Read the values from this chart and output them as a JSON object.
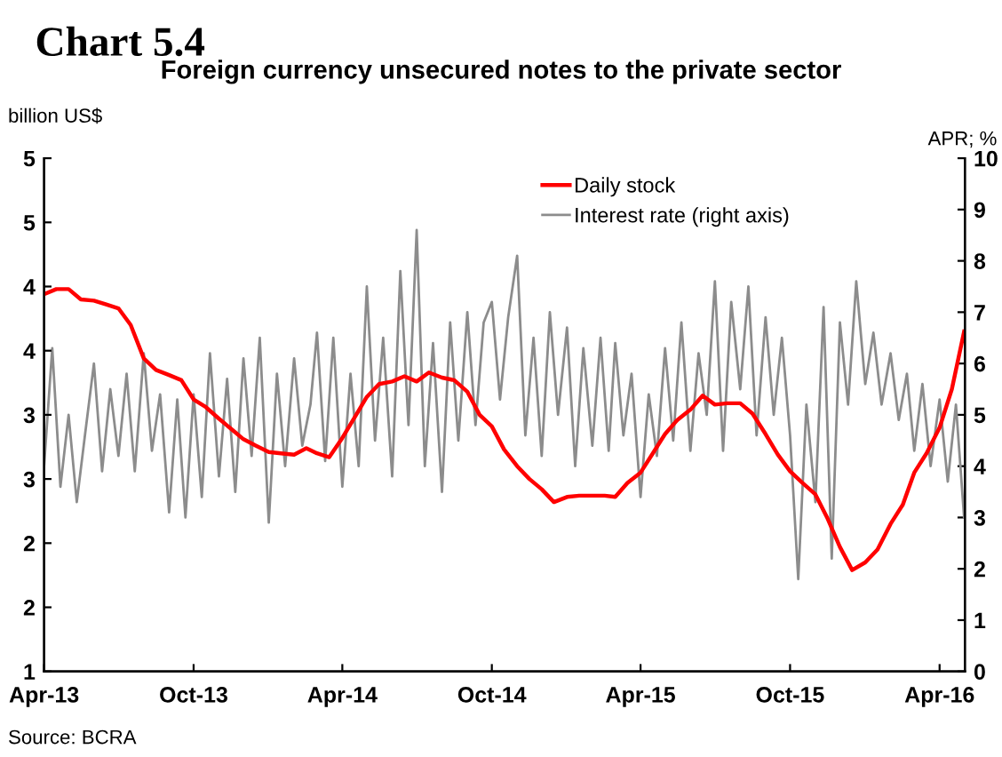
{
  "chart_data": {
    "type": "line",
    "title": "Chart 5.4",
    "subtitle": "Foreign currency unsecured notes to the private sector",
    "ylabel": "billion US$",
    "y2label": "APR; %",
    "annotations": [
      "Source: BCRA"
    ],
    "xlim": [
      "2013-04-01",
      "2016-05-02"
    ],
    "xticks": [
      {
        "value": "2013-04-01",
        "label": "Apr-13"
      },
      {
        "value": "2013-10-01",
        "label": "Oct-13"
      },
      {
        "value": "2014-04-01",
        "label": "Apr-14"
      },
      {
        "value": "2014-10-01",
        "label": "Oct-14"
      },
      {
        "value": "2015-04-01",
        "label": "Apr-15"
      },
      {
        "value": "2015-10-01",
        "label": "Oct-15"
      },
      {
        "value": "2016-04-01",
        "label": "Apr-16"
      }
    ],
    "ylim": [
      1,
      5
    ],
    "yticks": [
      1,
      {
        "value": 1.5,
        "label": "2"
      },
      2,
      {
        "value": 2.5,
        "label": "3"
      },
      3,
      {
        "value": 3.5,
        "label": "4"
      },
      4,
      {
        "value": 4.5,
        "label": "5"
      },
      5
    ],
    "y2lim": [
      0,
      10
    ],
    "y2ticks": [
      0,
      1,
      2,
      3,
      4,
      5,
      6,
      7,
      8,
      9,
      10
    ],
    "grid": false,
    "legend": "top right",
    "marker": "none",
    "line_style": "solid",
    "series": [
      {
        "name": "Daily stock",
        "color": "#ff0000",
        "x": [
          "2013-04-01",
          "2013-04-16",
          "2013-05-01",
          "2013-05-16",
          "2013-06-01",
          "2013-06-16",
          "2013-07-01",
          "2013-07-16",
          "2013-08-01",
          "2013-08-16",
          "2013-09-01",
          "2013-09-16",
          "2013-10-01",
          "2013-10-16",
          "2013-11-01",
          "2013-11-16",
          "2013-12-01",
          "2013-12-16",
          "2014-01-01",
          "2014-01-16",
          "2014-02-01",
          "2014-02-16",
          "2014-03-01",
          "2014-03-16",
          "2014-04-01",
          "2014-04-16",
          "2014-05-01",
          "2014-05-16",
          "2014-06-01",
          "2014-06-16",
          "2014-07-01",
          "2014-07-16",
          "2014-08-01",
          "2014-08-16",
          "2014-09-01",
          "2014-09-16",
          "2014-10-01",
          "2014-10-16",
          "2014-11-01",
          "2014-11-16",
          "2014-12-01",
          "2014-12-16",
          "2015-01-01",
          "2015-01-16",
          "2015-02-01",
          "2015-02-16",
          "2015-03-01",
          "2015-03-16",
          "2015-04-01",
          "2015-04-16",
          "2015-05-01",
          "2015-05-16",
          "2015-06-01",
          "2015-06-16",
          "2015-07-01",
          "2015-07-16",
          "2015-08-01",
          "2015-08-16",
          "2015-09-01",
          "2015-09-16",
          "2015-10-01",
          "2015-10-16",
          "2015-11-01",
          "2015-11-16",
          "2015-12-01",
          "2015-12-16",
          "2016-01-01",
          "2016-01-16",
          "2016-02-01",
          "2016-02-16",
          "2016-03-01",
          "2016-03-16",
          "2016-04-01",
          "2016-04-16",
          "2016-05-01"
        ],
        "values": [
          3.94,
          3.98,
          3.98,
          3.9,
          3.89,
          3.86,
          3.83,
          3.7,
          3.44,
          3.35,
          3.31,
          3.27,
          3.12,
          3.06,
          2.97,
          2.89,
          2.81,
          2.76,
          2.71,
          2.7,
          2.69,
          2.74,
          2.7,
          2.67,
          2.82,
          2.98,
          3.14,
          3.24,
          3.26,
          3.3,
          3.26,
          3.33,
          3.29,
          3.27,
          3.18,
          3.0,
          2.91,
          2.73,
          2.6,
          2.5,
          2.42,
          2.32,
          2.36,
          2.37,
          2.37,
          2.37,
          2.36,
          2.47,
          2.55,
          2.7,
          2.85,
          2.96,
          3.04,
          3.15,
          3.08,
          3.09,
          3.09,
          3.01,
          2.85,
          2.69,
          2.56,
          2.47,
          2.38,
          2.19,
          1.97,
          1.79,
          1.85,
          1.95,
          2.15,
          2.3,
          2.55,
          2.7,
          2.9,
          3.2,
          3.65
        ]
      },
      {
        "name": "Interest rate (right axis)",
        "color": "#8c8c8c",
        "axis": "y2",
        "x": [
          "2013-04-01",
          "2013-04-11",
          "2013-04-21",
          "2013-05-01",
          "2013-05-11",
          "2013-05-21",
          "2013-06-01",
          "2013-06-11",
          "2013-06-21",
          "2013-07-01",
          "2013-07-11",
          "2013-07-21",
          "2013-08-01",
          "2013-08-11",
          "2013-08-21",
          "2013-09-01",
          "2013-09-11",
          "2013-09-21",
          "2013-10-01",
          "2013-10-11",
          "2013-10-21",
          "2013-11-01",
          "2013-11-11",
          "2013-11-21",
          "2013-12-01",
          "2013-12-11",
          "2013-12-21",
          "2014-01-01",
          "2014-01-11",
          "2014-01-21",
          "2014-02-01",
          "2014-02-11",
          "2014-02-21",
          "2014-03-01",
          "2014-03-11",
          "2014-03-21",
          "2014-04-01",
          "2014-04-11",
          "2014-04-21",
          "2014-05-01",
          "2014-05-11",
          "2014-05-21",
          "2014-06-01",
          "2014-06-11",
          "2014-06-21",
          "2014-07-01",
          "2014-07-11",
          "2014-07-21",
          "2014-08-01",
          "2014-08-11",
          "2014-08-21",
          "2014-09-01",
          "2014-09-11",
          "2014-09-21",
          "2014-10-01",
          "2014-10-11",
          "2014-10-21",
          "2014-11-01",
          "2014-11-11",
          "2014-11-21",
          "2014-12-01",
          "2014-12-11",
          "2014-12-21",
          "2015-01-01",
          "2015-01-11",
          "2015-01-21",
          "2015-02-01",
          "2015-02-11",
          "2015-02-21",
          "2015-03-01",
          "2015-03-11",
          "2015-03-21",
          "2015-04-01",
          "2015-04-11",
          "2015-04-21",
          "2015-05-01",
          "2015-05-11",
          "2015-05-21",
          "2015-06-01",
          "2015-06-11",
          "2015-06-21",
          "2015-07-01",
          "2015-07-11",
          "2015-07-21",
          "2015-08-01",
          "2015-08-11",
          "2015-08-21",
          "2015-09-01",
          "2015-09-11",
          "2015-09-21",
          "2015-10-01",
          "2015-10-11",
          "2015-10-21",
          "2015-11-01",
          "2015-11-11",
          "2015-11-21",
          "2015-12-01",
          "2015-12-11",
          "2015-12-21",
          "2016-01-01",
          "2016-01-11",
          "2016-01-21",
          "2016-02-01",
          "2016-02-11",
          "2016-02-21",
          "2016-03-01",
          "2016-03-11",
          "2016-03-21",
          "2016-04-01",
          "2016-04-11",
          "2016-04-21",
          "2016-05-01"
        ],
        "values": [
          4.0,
          6.3,
          3.6,
          5.0,
          3.3,
          4.6,
          6.0,
          3.9,
          5.5,
          4.2,
          5.8,
          3.9,
          6.2,
          4.3,
          5.4,
          3.1,
          5.3,
          3.0,
          5.4,
          3.4,
          6.2,
          3.8,
          5.7,
          3.5,
          6.1,
          4.2,
          6.5,
          2.9,
          5.8,
          4.0,
          6.1,
          4.4,
          5.2,
          6.6,
          4.1,
          6.5,
          3.6,
          5.8,
          4.0,
          7.5,
          4.5,
          6.5,
          3.8,
          7.8,
          4.8,
          8.6,
          4.0,
          6.4,
          3.5,
          6.8,
          4.5,
          7.0,
          4.8,
          6.8,
          7.2,
          5.3,
          6.9,
          8.1,
          4.6,
          6.5,
          4.2,
          7.0,
          5.0,
          6.7,
          4.0,
          6.3,
          4.4,
          6.5,
          4.3,
          6.4,
          4.6,
          5.8,
          3.4,
          5.4,
          4.2,
          6.3,
          4.5,
          6.8,
          4.3,
          6.2,
          5.0,
          7.6,
          4.3,
          7.2,
          5.5,
          7.5,
          4.6,
          6.9,
          5.0,
          6.5,
          4.6,
          1.8,
          5.2,
          3.3,
          7.1,
          2.2,
          6.8,
          5.2,
          7.6,
          5.6,
          6.6,
          5.2,
          6.2,
          4.9,
          5.8,
          4.3,
          5.6,
          4.0,
          5.3,
          3.7,
          5.2,
          3.0
        ]
      }
    ]
  }
}
